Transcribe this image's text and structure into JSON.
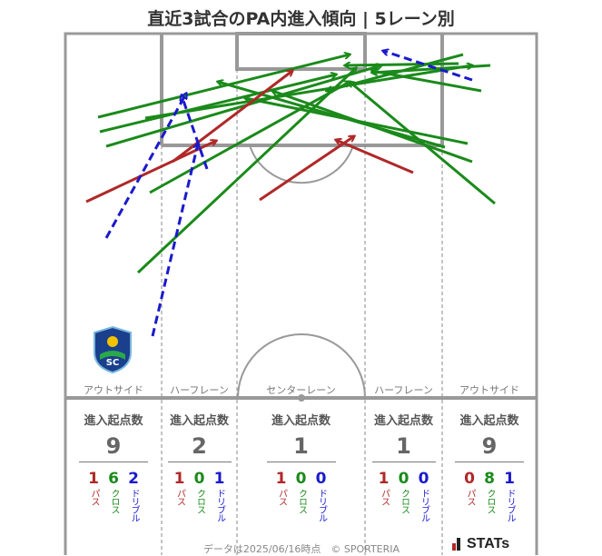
{
  "title": "直近3試合のPA内進入傾向 | 5レーン別",
  "lanes": [
    {
      "label": "アウトサイド",
      "header": "進入起点数",
      "total": "9",
      "pass": "1",
      "cross": "6",
      "dribble": "2"
    },
    {
      "label": "ハーフレーン",
      "header": "進入起点数",
      "total": "2",
      "pass": "1",
      "cross": "0",
      "dribble": "1"
    },
    {
      "label": "センターレーン",
      "header": "進入起点数",
      "total": "1",
      "pass": "1",
      "cross": "0",
      "dribble": "0"
    },
    {
      "label": "ハーフレーン",
      "header": "進入起点数",
      "total": "1",
      "pass": "1",
      "cross": "0",
      "dribble": "0"
    },
    {
      "label": "アウトサイド",
      "header": "進入起点数",
      "total": "9",
      "pass": "0",
      "cross": "8",
      "dribble": "1"
    }
  ],
  "legend_labels": {
    "pass": "パス",
    "cross": "クロス",
    "dribble": "ドリブル"
  },
  "colors": {
    "pass": "#b02828",
    "cross": "#1a8a1a",
    "dribble": "#1a1acc"
  },
  "footer": "データは2025/06/16時点　© SPORTERIA",
  "brand": "STATs",
  "logo_text": "SC"
}
